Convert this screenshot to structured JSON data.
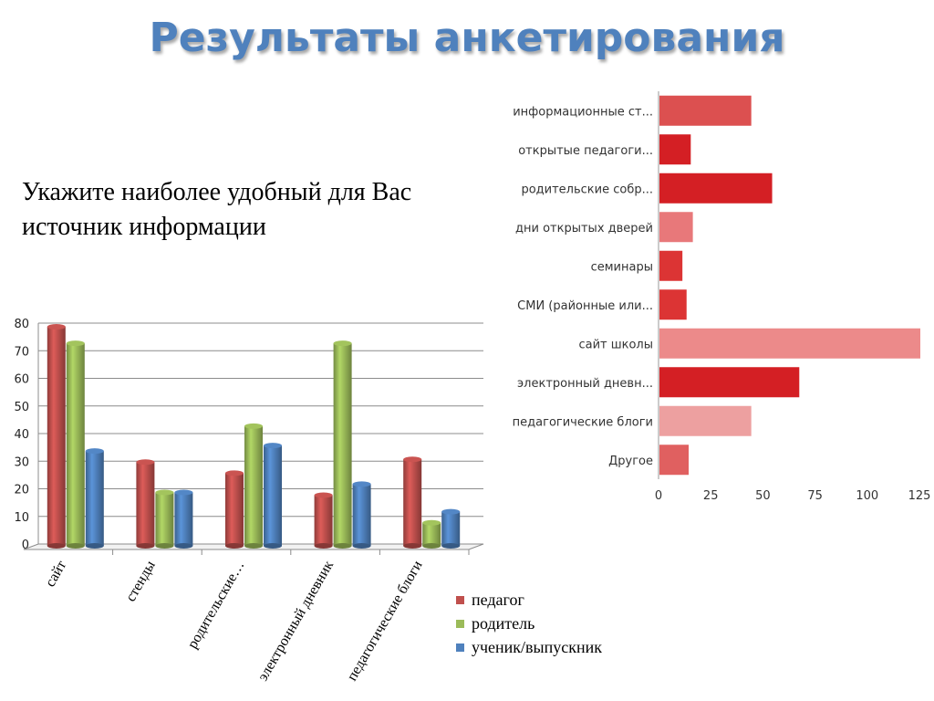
{
  "page": {
    "title": "Результаты анкетирования",
    "question": "Укажите наиболее удобный для Вас источник информации"
  },
  "chart_data": [
    {
      "type": "bar",
      "orientation": "horizontal",
      "categories": [
        "информационные ст...",
        "открытые педагоги...",
        "родительские собр...",
        "дни открытых дверей",
        "семинары",
        "СМИ (районные или...",
        "сайт школы",
        "электронный дневн...",
        "педагогические блоги",
        "Другое"
      ],
      "values": [
        44,
        15,
        54,
        16,
        11,
        13,
        125,
        67,
        44,
        14
      ],
      "colors": [
        "#dc5050",
        "#d41f24",
        "#d41f24",
        "#e8787a",
        "#dc3434",
        "#dc3434",
        "#ec8a8a",
        "#d41f24",
        "#eda0a0",
        "#e06060"
      ],
      "xlim": [
        0,
        125
      ],
      "xticks": [
        "0",
        "25",
        "50",
        "75",
        "100",
        "125"
      ],
      "grid": false
    },
    {
      "type": "bar",
      "orientation": "vertical",
      "style": "3d-cylinder",
      "categories": [
        "сайт",
        "стенды",
        "родительские…",
        "электронный дневник",
        "педагогические блоги"
      ],
      "series": [
        {
          "name": "педагог",
          "color": "#c0504d",
          "values": [
            80,
            31,
            27,
            19,
            32
          ]
        },
        {
          "name": "родитель",
          "color": "#9bbb59",
          "values": [
            74,
            20,
            44,
            74,
            9
          ]
        },
        {
          "name": "ученик/выпускник",
          "color": "#4f81bd",
          "values": [
            35,
            20,
            37,
            23,
            13
          ]
        }
      ],
      "ylim": [
        0,
        80
      ],
      "yticks": [
        "0",
        "10",
        "20",
        "30",
        "40",
        "50",
        "60",
        "70",
        "80"
      ],
      "grid": true,
      "legend_position": "bottom-right"
    }
  ]
}
